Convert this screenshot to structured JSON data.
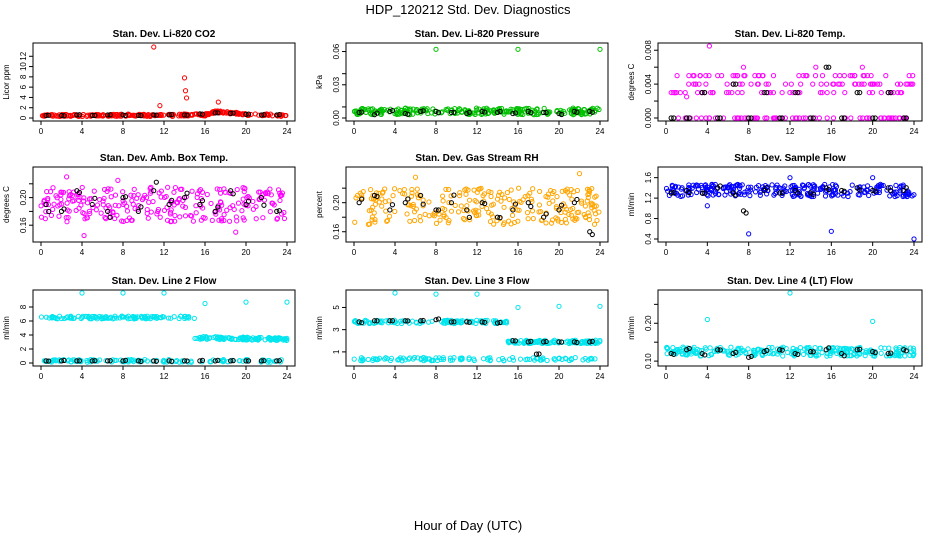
{
  "page": {
    "title": "HDP_120212  Std. Dev. Diagnostics",
    "xlabel": "Hour of Day (UTC)"
  },
  "colors": {
    "black": "#000000",
    "red": "#ff0000",
    "green": "#00c000",
    "magenta": "#ff00ff",
    "orange": "#ffa500",
    "blue": "#0000ff",
    "cyan": "#00e5ee"
  },
  "chart_data": [
    {
      "type": "scatter",
      "title": "Stan. Dev. Li-820 CO2",
      "ylabel": "Licor ppm",
      "xlim": [
        0,
        24
      ],
      "ylim": [
        0,
        14
      ],
      "xticks": [
        0,
        4,
        8,
        12,
        16,
        20,
        24
      ],
      "yticks": [
        0,
        2,
        4,
        6,
        8,
        10,
        12
      ],
      "color": "#ff0000",
      "baseline": [
        [
          0,
          0.5
        ],
        [
          4,
          0.5
        ],
        [
          8,
          0.55
        ],
        [
          12,
          0.5
        ],
        [
          14,
          0.6
        ],
        [
          16,
          0.6
        ],
        [
          17,
          1.2
        ],
        [
          18,
          1.1
        ],
        [
          20,
          0.7
        ],
        [
          22,
          0.6
        ],
        [
          24,
          0.5
        ]
      ],
      "band_halfwidth": 0.2,
      "outliers": [
        [
          11,
          13.8
        ],
        [
          11.6,
          2.4
        ],
        [
          14,
          7.8
        ],
        [
          14.1,
          5.3
        ],
        [
          14.2,
          3.9
        ],
        [
          17.3,
          3.1
        ]
      ],
      "black_points": [
        [
          0.5,
          0.5
        ],
        [
          2,
          0.5
        ],
        [
          3.5,
          0.6
        ],
        [
          5,
          0.5
        ],
        [
          6.5,
          0.6
        ],
        [
          8,
          0.6
        ],
        [
          9.5,
          0.5
        ],
        [
          11,
          0.6
        ],
        [
          12.5,
          0.6
        ],
        [
          14,
          0.6
        ],
        [
          15.5,
          0.8
        ],
        [
          17,
          1.0
        ],
        [
          18.5,
          0.9
        ],
        [
          20,
          0.7
        ],
        [
          21.5,
          0.6
        ],
        [
          23,
          0.6
        ]
      ]
    },
    {
      "type": "scatter",
      "title": "Stan. Dev. Li-820 Pressure",
      "ylabel": "kPa",
      "xlim": [
        0,
        24
      ],
      "ylim": [
        0,
        0.065
      ],
      "xticks": [
        0,
        4,
        8,
        12,
        16,
        20,
        24
      ],
      "yticks": [
        0.0,
        0.01,
        0.03,
        0.04,
        0.06
      ],
      "ytick_labels": [
        "0.00",
        "",
        "0.03",
        "",
        "0.06"
      ],
      "color": "#00c000",
      "baseline": [
        [
          0,
          0.006
        ],
        [
          24,
          0.006
        ]
      ],
      "band_halfwidth": 0.003,
      "outliers": [
        [
          8,
          0.062
        ],
        [
          16,
          0.062
        ],
        [
          24,
          0.062
        ]
      ],
      "black_points": [
        [
          0.5,
          0.005
        ],
        [
          2,
          0.003
        ],
        [
          3.5,
          0.006
        ],
        [
          5,
          0.004
        ],
        [
          6.5,
          0.006
        ],
        [
          8,
          0.006
        ],
        [
          9.5,
          0.005
        ],
        [
          11,
          0.004
        ],
        [
          12.5,
          0.006
        ],
        [
          14,
          0.005
        ],
        [
          15.5,
          0.004
        ],
        [
          17,
          0.006
        ],
        [
          18.5,
          0.005
        ],
        [
          20,
          0.004
        ],
        [
          21.5,
          0.006
        ],
        [
          23,
          0.006
        ]
      ]
    },
    {
      "type": "scatter",
      "title": "Stan. Dev. Li-820 Temp.",
      "ylabel": "degrees C",
      "xlim": [
        0,
        24
      ],
      "ylim": [
        0,
        0.0085
      ],
      "xticks": [
        0,
        4,
        8,
        12,
        16,
        20,
        24
      ],
      "yticks": [
        0.0,
        0.002,
        0.004,
        0.006,
        0.008
      ],
      "ytick_labels": [
        "0.000",
        "",
        "0.004",
        "",
        "0.008"
      ],
      "color": "#ff00ff",
      "levels": [
        0.0,
        0.003,
        0.004,
        0.005
      ],
      "outliers": [
        [
          4.2,
          0.0085
        ],
        [
          2,
          0.0025
        ],
        [
          14.5,
          0.006
        ],
        [
          19,
          0.006
        ],
        [
          7.5,
          0.006
        ]
      ],
      "black_points": [
        [
          0.5,
          0.0
        ],
        [
          2,
          0.0
        ],
        [
          3.5,
          0.003
        ],
        [
          5,
          0.0
        ],
        [
          6.5,
          0.004
        ],
        [
          8,
          0.0
        ],
        [
          9.5,
          0.003
        ],
        [
          11,
          0.0
        ],
        [
          12.5,
          0.003
        ],
        [
          14,
          0.0
        ],
        [
          15.5,
          0.006
        ],
        [
          17,
          0.0
        ],
        [
          18.5,
          0.003
        ],
        [
          20,
          0.0
        ],
        [
          21.5,
          0.003
        ],
        [
          23,
          0.0
        ]
      ]
    },
    {
      "type": "scatter",
      "title": "Stan. Dev. Amb. Box Temp.",
      "ylabel": "degrees C",
      "xlim": [
        0,
        24
      ],
      "ylim": [
        0.14,
        0.24
      ],
      "xticks": [
        0,
        4,
        8,
        12,
        16,
        20,
        24
      ],
      "yticks": [
        0.16,
        0.18,
        0.2,
        0.22
      ],
      "ytick_labels": [
        "0.16",
        "",
        "0.20",
        ""
      ],
      "color": "#ff00ff",
      "baseline": [
        [
          0,
          0.19
        ],
        [
          24,
          0.19
        ]
      ],
      "band_halfwidth": 0.025,
      "outliers": [
        [
          2.5,
          0.23
        ],
        [
          4.2,
          0.145
        ],
        [
          7.5,
          0.225
        ],
        [
          19,
          0.15
        ]
      ],
      "black_points": [
        [
          0.5,
          0.19
        ],
        [
          2,
          0.18
        ],
        [
          3.5,
          0.21
        ],
        [
          5,
          0.19
        ],
        [
          6.5,
          0.18
        ],
        [
          8,
          0.2
        ],
        [
          9.5,
          0.18
        ],
        [
          11,
          0.21
        ],
        [
          12.5,
          0.19
        ],
        [
          14,
          0.2
        ],
        [
          15.5,
          0.19
        ],
        [
          17,
          0.18
        ],
        [
          18.5,
          0.21
        ],
        [
          20,
          0.19
        ],
        [
          21.5,
          0.2
        ],
        [
          23,
          0.18
        ]
      ]
    },
    {
      "type": "scatter",
      "title": "Stan. Dev. Gas Stream RH",
      "ylabel": "percent",
      "xlim": [
        0,
        24
      ],
      "ylim": [
        0.15,
        0.245
      ],
      "xticks": [
        0,
        4,
        8,
        12,
        16,
        20,
        24
      ],
      "yticks": [
        0.16,
        0.18,
        0.2,
        0.22
      ],
      "ytick_labels": [
        "0.16",
        "",
        "0.20",
        ""
      ],
      "color": "#ffa500",
      "baseline": [
        [
          0,
          0.195
        ],
        [
          24,
          0.195
        ]
      ],
      "band_halfwidth": 0.025,
      "outliers": [
        [
          22,
          0.24
        ],
        [
          6,
          0.235
        ]
      ],
      "black_points": [
        [
          0.5,
          0.2
        ],
        [
          2,
          0.21
        ],
        [
          3.5,
          0.19
        ],
        [
          5,
          0.2
        ],
        [
          6.5,
          0.21
        ],
        [
          8,
          0.19
        ],
        [
          9.5,
          0.2
        ],
        [
          11,
          0.19
        ],
        [
          12.5,
          0.2
        ],
        [
          14,
          0.18
        ],
        [
          15.5,
          0.19
        ],
        [
          17,
          0.2
        ],
        [
          18.5,
          0.18
        ],
        [
          20,
          0.19
        ],
        [
          21.5,
          0.2
        ],
        [
          23,
          0.16
        ]
      ]
    },
    {
      "type": "scatter",
      "title": "Stan. Dev. Sample Flow",
      "ylabel": "ml/min",
      "xlim": [
        0,
        24
      ],
      "ylim": [
        0.4,
        1.75
      ],
      "xticks": [
        0,
        4,
        8,
        12,
        16,
        20,
        24
      ],
      "yticks": [
        0.4,
        0.8,
        1.2,
        1.6
      ],
      "ytick_labels": [
        "0.4",
        "0.8",
        "1.2",
        "1.6"
      ],
      "color": "#0000ff",
      "baseline": [
        [
          0,
          1.35
        ],
        [
          24,
          1.35
        ]
      ],
      "band_halfwidth": 0.12,
      "outliers": [
        [
          8,
          0.5
        ],
        [
          16,
          0.55
        ],
        [
          24,
          0.4
        ],
        [
          4,
          1.05
        ],
        [
          12,
          1.6
        ],
        [
          20,
          1.6
        ]
      ],
      "black_points": [
        [
          0.5,
          1.3
        ],
        [
          2,
          1.35
        ],
        [
          3.5,
          1.3
        ],
        [
          5,
          1.4
        ],
        [
          6.5,
          1.3
        ],
        [
          7.5,
          0.95
        ],
        [
          9.5,
          1.35
        ],
        [
          11,
          1.3
        ],
        [
          12.5,
          1.35
        ],
        [
          14,
          1.3
        ],
        [
          15.5,
          1.4
        ],
        [
          17,
          1.35
        ],
        [
          18.5,
          1.4
        ],
        [
          20,
          1.35
        ],
        [
          21.5,
          1.4
        ],
        [
          23,
          1.35
        ]
      ]
    },
    {
      "type": "scatter",
      "title": "Stan. Dev. Line 2 Flow",
      "ylabel": "ml/min",
      "xlim": [
        0,
        24
      ],
      "ylim": [
        0,
        10
      ],
      "xticks": [
        0,
        4,
        8,
        12,
        16,
        20,
        24
      ],
      "yticks": [
        0,
        2,
        4,
        6,
        8
      ],
      "ytick_labels": [
        "0",
        "2",
        "4",
        "6",
        "8"
      ],
      "color": "#00e5ee",
      "segments": [
        [
          [
            0,
            6.5
          ],
          [
            15,
            6.5
          ]
        ],
        [
          [
            15,
            3.6
          ],
          [
            24,
            3.4
          ]
        ],
        [
          [
            0,
            0.3
          ],
          [
            24,
            0.3
          ]
        ]
      ],
      "band_halfwidth": 0.2,
      "outliers": [
        [
          4,
          10
        ],
        [
          8,
          10
        ],
        [
          12,
          10
        ],
        [
          16,
          8.5
        ],
        [
          20,
          8.7
        ],
        [
          24,
          8.7
        ]
      ],
      "black_points": [
        [
          0.5,
          0.3
        ],
        [
          2,
          0.3
        ],
        [
          3.5,
          0.3
        ],
        [
          5,
          0.3
        ],
        [
          6.5,
          0.3
        ],
        [
          8,
          0.3
        ],
        [
          9.5,
          0.3
        ],
        [
          11,
          0.3
        ],
        [
          12.5,
          0.3
        ],
        [
          14,
          0.3
        ],
        [
          15.5,
          0.3
        ],
        [
          17,
          0.3
        ],
        [
          18.5,
          0.3
        ],
        [
          20,
          0.3
        ],
        [
          21.5,
          0.3
        ],
        [
          23,
          0.3
        ]
      ]
    },
    {
      "type": "scatter",
      "title": "Stan. Dev. Line 3 Flow",
      "ylabel": "ml/min",
      "xlim": [
        0,
        24
      ],
      "ylim": [
        0,
        6.3
      ],
      "xticks": [
        0,
        4,
        8,
        12,
        16,
        20,
        24
      ],
      "yticks": [
        1,
        3,
        5
      ],
      "ytick_labels": [
        "1",
        "3",
        "5"
      ],
      "color": "#00e5ee",
      "segments": [
        [
          [
            0,
            3.7
          ],
          [
            15,
            3.7
          ]
        ],
        [
          [
            15,
            1.9
          ],
          [
            24,
            1.9
          ]
        ],
        [
          [
            0,
            0.35
          ],
          [
            24,
            0.35
          ]
        ]
      ],
      "band_halfwidth": 0.15,
      "outliers": [
        [
          4,
          6.3
        ],
        [
          8,
          6.2
        ],
        [
          12,
          6.2
        ],
        [
          16,
          5.0
        ],
        [
          20,
          5.1
        ],
        [
          24,
          5.1
        ]
      ],
      "black_points": [
        [
          0.5,
          3.7
        ],
        [
          2,
          3.8
        ],
        [
          3.5,
          3.8
        ],
        [
          5,
          3.8
        ],
        [
          6.5,
          3.8
        ],
        [
          8,
          3.9
        ],
        [
          9.5,
          3.7
        ],
        [
          11,
          3.7
        ],
        [
          12.5,
          3.7
        ],
        [
          14,
          3.6
        ],
        [
          15.5,
          2.0
        ],
        [
          17,
          1.9
        ],
        [
          17.8,
          0.8
        ],
        [
          18.5,
          1.9
        ],
        [
          20,
          1.9
        ],
        [
          21.5,
          1.9
        ],
        [
          23,
          1.9
        ]
      ]
    },
    {
      "type": "scatter",
      "title": "Stan. Dev. Line 4 (LT) Flow",
      "ylabel": "ml/min",
      "xlim": [
        0,
        24
      ],
      "ylim": [
        0.095,
        0.28
      ],
      "xticks": [
        0,
        4,
        8,
        12,
        16,
        20,
        24
      ],
      "yticks": [
        0.1,
        0.15,
        0.2,
        0.25
      ],
      "ytick_labels": [
        "0.10",
        "",
        "0.20",
        ""
      ],
      "color": "#00e5ee",
      "baseline": [
        [
          0,
          0.125
        ],
        [
          24,
          0.125
        ]
      ],
      "band_halfwidth": 0.012,
      "outliers": [
        [
          4,
          0.21
        ],
        [
          12,
          0.28
        ],
        [
          20,
          0.205
        ]
      ],
      "black_points": [
        [
          0.5,
          0.12
        ],
        [
          2,
          0.13
        ],
        [
          3.5,
          0.12
        ],
        [
          5,
          0.13
        ],
        [
          6.5,
          0.12
        ],
        [
          8,
          0.11
        ],
        [
          9.5,
          0.125
        ],
        [
          11,
          0.13
        ],
        [
          12.5,
          0.12
        ],
        [
          14,
          0.125
        ],
        [
          15.5,
          0.13
        ],
        [
          17,
          0.12
        ],
        [
          18.5,
          0.13
        ],
        [
          20,
          0.125
        ],
        [
          21.5,
          0.12
        ],
        [
          23,
          0.13
        ]
      ]
    }
  ]
}
